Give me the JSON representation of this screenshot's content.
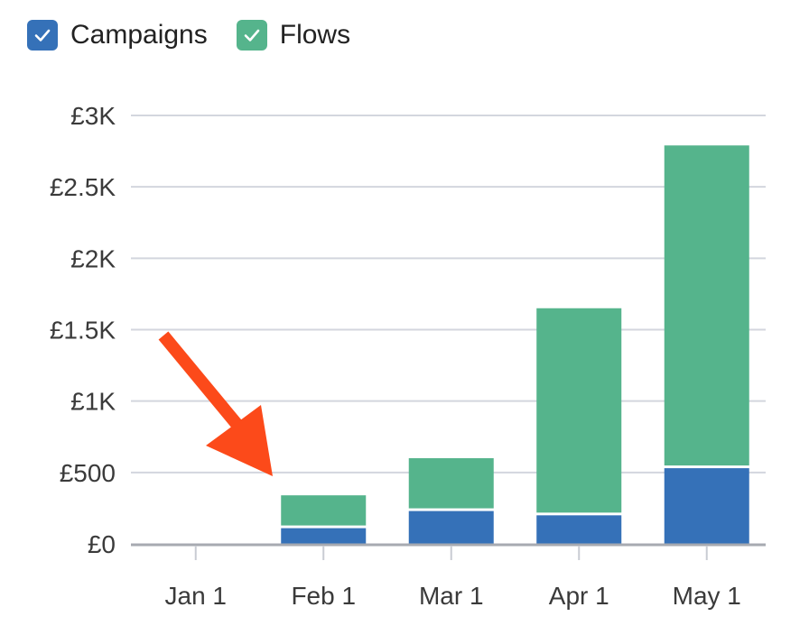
{
  "legend": [
    {
      "label": "Campaigns",
      "color": "#3571b8",
      "checked": true,
      "icon": "check-icon"
    },
    {
      "label": "Flows",
      "color": "#55b48c",
      "checked": true,
      "icon": "check-icon"
    }
  ],
  "chart_data": {
    "type": "bar",
    "stacked": true,
    "categories": [
      "Jan 1",
      "Feb 1",
      "Mar 1",
      "Apr 1",
      "May 1"
    ],
    "series": [
      {
        "name": "Campaigns",
        "color": "#3571b8",
        "values": [
          0,
          110,
          230,
          200,
          530
        ]
      },
      {
        "name": "Flows",
        "color": "#55b48c",
        "values": [
          0,
          230,
          370,
          1450,
          2260
        ]
      }
    ],
    "ylim": [
      0,
      3000
    ],
    "yticks": [
      0,
      500,
      1000,
      1500,
      2000,
      2500,
      3000
    ],
    "ytick_labels": [
      "£0",
      "£500",
      "£1K",
      "£1.5K",
      "£2K",
      "£2.5K",
      "£3K"
    ],
    "grid": true,
    "legend_position": "top-left",
    "annotation": {
      "type": "arrow",
      "color": "#fc4a1a",
      "icon": "arrow-icon",
      "points_to": "Feb 1"
    }
  }
}
